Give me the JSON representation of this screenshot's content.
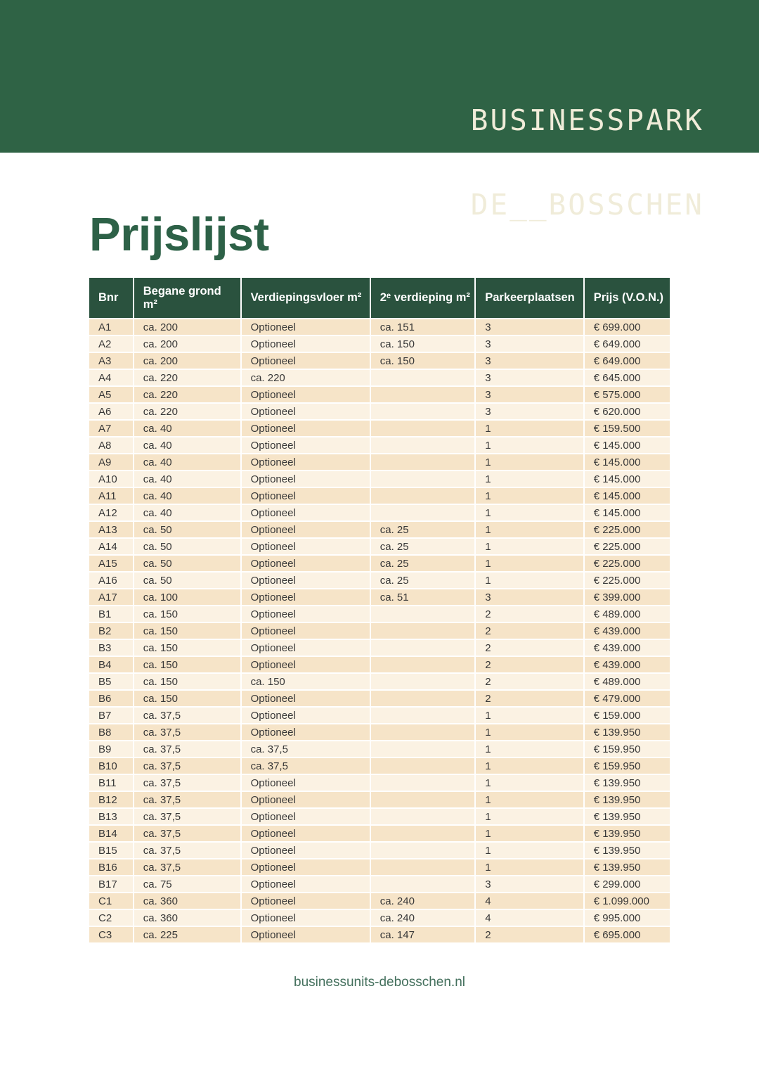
{
  "brand": {
    "logo_line1": "BUSINESSPARK",
    "logo_line2": "DE__BOSSCHEN"
  },
  "title": "Prijslijst",
  "table": {
    "columns": [
      {
        "key": "bnr",
        "label": "Bnr"
      },
      {
        "key": "begane-grond",
        "label": "Begane grond m²"
      },
      {
        "key": "verdiepingsvloer",
        "label": "Verdiepingsvloer m²"
      },
      {
        "key": "tweede-verdieping",
        "label": "2ᵉ verdieping m²"
      },
      {
        "key": "parkeerplaatsen",
        "label": "Parkeerplaatsen"
      },
      {
        "key": "prijs",
        "label": "Prijs (V.O.N.)"
      }
    ],
    "rows": [
      [
        "A1",
        "ca. 200",
        "Optioneel",
        "ca. 151",
        "3",
        "€ 699.000"
      ],
      [
        "A2",
        "ca. 200",
        "Optioneel",
        "ca. 150",
        "3",
        "€ 649.000"
      ],
      [
        "A3",
        "ca. 200",
        "Optioneel",
        "ca. 150",
        "3",
        "€ 649.000"
      ],
      [
        "A4",
        "ca. 220",
        "ca. 220",
        "",
        "3",
        "€ 645.000"
      ],
      [
        "A5",
        "ca. 220",
        "Optioneel",
        "",
        "3",
        "€ 575.000"
      ],
      [
        "A6",
        "ca. 220",
        "Optioneel",
        "",
        "3",
        "€ 620.000"
      ],
      [
        "A7",
        "ca. 40",
        "Optioneel",
        "",
        "1",
        "€ 159.500"
      ],
      [
        "A8",
        "ca. 40",
        "Optioneel",
        "",
        "1",
        "€ 145.000"
      ],
      [
        "A9",
        "ca. 40",
        "Optioneel",
        "",
        "1",
        "€ 145.000"
      ],
      [
        "A10",
        "ca. 40",
        "Optioneel",
        "",
        "1",
        "€ 145.000"
      ],
      [
        "A11",
        "ca. 40",
        "Optioneel",
        "",
        "1",
        "€ 145.000"
      ],
      [
        "A12",
        "ca. 40",
        "Optioneel",
        "",
        "1",
        "€ 145.000"
      ],
      [
        "A13",
        "ca. 50",
        "Optioneel",
        "ca. 25",
        "1",
        "€ 225.000"
      ],
      [
        "A14",
        "ca. 50",
        "Optioneel",
        "ca. 25",
        "1",
        "€ 225.000"
      ],
      [
        "A15",
        "ca. 50",
        "Optioneel",
        "ca. 25",
        "1",
        "€ 225.000"
      ],
      [
        "A16",
        "ca. 50",
        "Optioneel",
        "ca. 25",
        "1",
        "€ 225.000"
      ],
      [
        "A17",
        "ca. 100",
        "Optioneel",
        "ca. 51",
        "3",
        "€ 399.000"
      ],
      [
        "B1",
        "ca. 150",
        "Optioneel",
        "",
        "2",
        "€ 489.000"
      ],
      [
        "B2",
        "ca. 150",
        "Optioneel",
        "",
        "2",
        "€ 439.000"
      ],
      [
        "B3",
        "ca. 150",
        "Optioneel",
        "",
        "2",
        "€ 439.000"
      ],
      [
        "B4",
        "ca. 150",
        "Optioneel",
        "",
        "2",
        "€ 439.000"
      ],
      [
        "B5",
        "ca. 150",
        "ca. 150",
        "",
        "2",
        "€ 489.000"
      ],
      [
        "B6",
        "ca. 150",
        "Optioneel",
        "",
        "2",
        "€ 479.000"
      ],
      [
        "B7",
        "ca. 37,5",
        "Optioneel",
        "",
        "1",
        "€ 159.000"
      ],
      [
        "B8",
        "ca. 37,5",
        "Optioneel",
        "",
        "1",
        "€ 139.950"
      ],
      [
        "B9",
        "ca. 37,5",
        "ca. 37,5",
        "",
        "1",
        "€ 159.950"
      ],
      [
        "B10",
        "ca. 37,5",
        "ca. 37,5",
        "",
        "1",
        "€ 159.950"
      ],
      [
        "B11",
        "ca. 37,5",
        "Optioneel",
        "",
        "1",
        "€ 139.950"
      ],
      [
        "B12",
        "ca. 37,5",
        "Optioneel",
        "",
        "1",
        "€ 139.950"
      ],
      [
        "B13",
        "ca. 37,5",
        "Optioneel",
        "",
        "1",
        "€ 139.950"
      ],
      [
        "B14",
        "ca. 37,5",
        "Optioneel",
        "",
        "1",
        "€ 139.950"
      ],
      [
        "B15",
        "ca. 37,5",
        "Optioneel",
        "",
        "1",
        "€ 139.950"
      ],
      [
        "B16",
        "ca. 37,5",
        "Optioneel",
        "",
        "1",
        "€ 139.950"
      ],
      [
        "B17",
        "ca. 75",
        "Optioneel",
        "",
        "3",
        "€ 299.000"
      ],
      [
        "C1",
        "ca. 360",
        "Optioneel",
        "ca. 240",
        "4",
        "€ 1.099.000"
      ],
      [
        "C2",
        "ca. 360",
        "Optioneel",
        "ca. 240",
        "4",
        "€ 995.000"
      ],
      [
        "C3",
        "ca. 225",
        "Optioneel",
        "ca. 147",
        "2",
        "€ 695.000"
      ]
    ]
  },
  "footer": {
    "url": "businessunits-debosschen.nl"
  },
  "colors": {
    "banner_green": "#2f6345",
    "table_header_green": "#2a523e",
    "title_green": "#2d6147",
    "row_dark_beige": "#f6e4c8",
    "row_light_beige": "#fbf2e3",
    "logo_cream": "#f0ecd9",
    "footer_green": "#44705d",
    "body_text": "#383838"
  }
}
